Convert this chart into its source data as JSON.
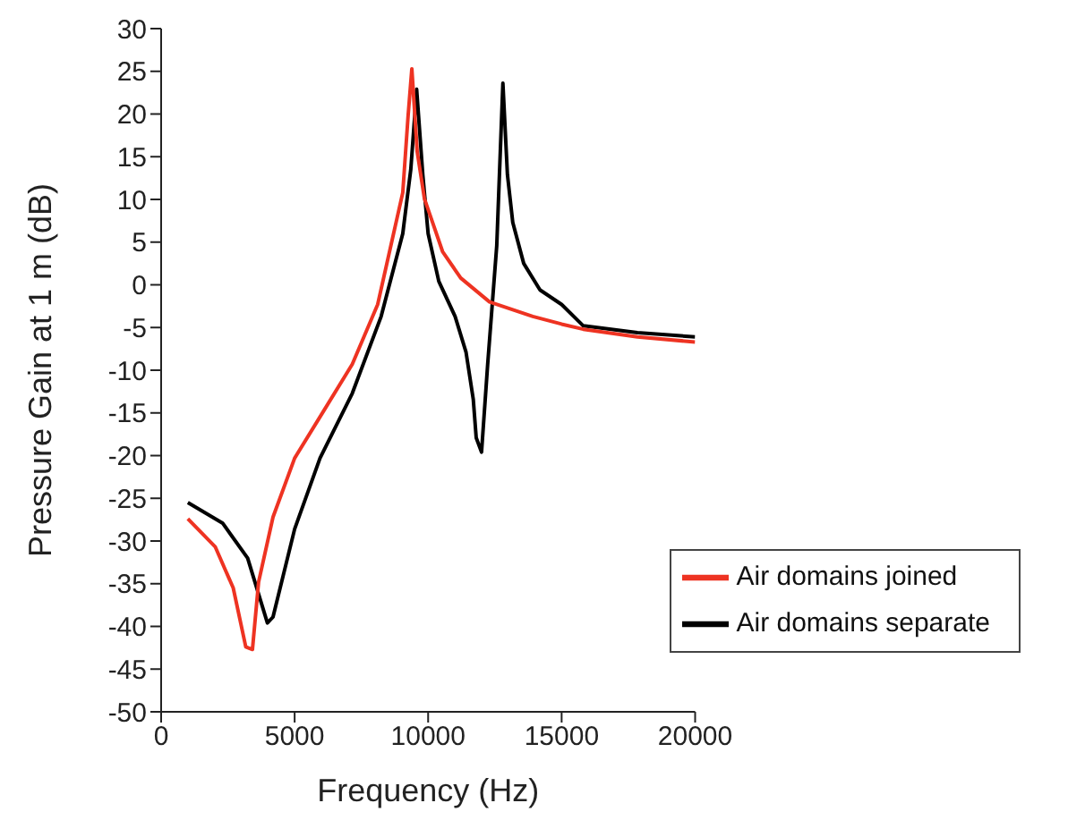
{
  "chart_data": {
    "type": "line",
    "xlabel": "Frequency (Hz)",
    "ylabel": "Pressure Gain at 1 m (dB)",
    "xlim": [
      0,
      20000
    ],
    "xticks": [
      0,
      5000,
      10000,
      15000,
      20000
    ],
    "ylim": [
      -50,
      30
    ],
    "yticks": [
      -50,
      -45,
      -40,
      -35,
      -30,
      -25,
      -20,
      -15,
      -10,
      -5,
      0,
      5,
      10,
      15,
      20,
      25,
      30
    ],
    "grid": false,
    "legend": "bottom right",
    "marker": "none",
    "line_style": "solid",
    "series": [
      {
        "name": "Air domains separate",
        "color": "#000000",
        "x": [
          1000,
          2300,
          3240,
          3980,
          4190,
          5000,
          5950,
          7160,
          8240,
          9050,
          9350,
          9570,
          9800,
          10000,
          10400,
          11010,
          11420,
          11690,
          11800,
          12000,
          12230,
          12570,
          12800,
          12970,
          13170,
          13580,
          14190,
          15000,
          15810,
          17840,
          20000
        ],
        "values": [
          -25.5,
          -27.9,
          -32.0,
          -39.6,
          -38.9,
          -28.6,
          -20.3,
          -12.7,
          -3.7,
          6.0,
          13.5,
          22.9,
          12.9,
          6.0,
          0.4,
          -3.7,
          -7.9,
          -13.4,
          -17.9,
          -19.6,
          -9.3,
          4.6,
          23.6,
          12.9,
          7.3,
          2.5,
          -0.6,
          -2.3,
          -4.8,
          -5.6,
          -6.1
        ]
      },
      {
        "name": "Air domains joined",
        "color": "#ee3322",
        "x": [
          1000,
          2030,
          2700,
          3170,
          3420,
          3650,
          4190,
          5000,
          6080,
          7160,
          8110,
          9050,
          9250,
          9390,
          9590,
          9860,
          10540,
          11220,
          12300,
          13920,
          15000,
          15810,
          17840,
          20000
        ],
        "values": [
          -27.4,
          -30.7,
          -35.5,
          -42.4,
          -42.7,
          -34.8,
          -27.2,
          -20.3,
          -14.8,
          -9.3,
          -2.3,
          10.8,
          19.8,
          25.3,
          15.6,
          10.1,
          3.9,
          0.8,
          -2.0,
          -3.7,
          -4.6,
          -5.2,
          -6.1,
          -6.7
        ]
      }
    ]
  }
}
